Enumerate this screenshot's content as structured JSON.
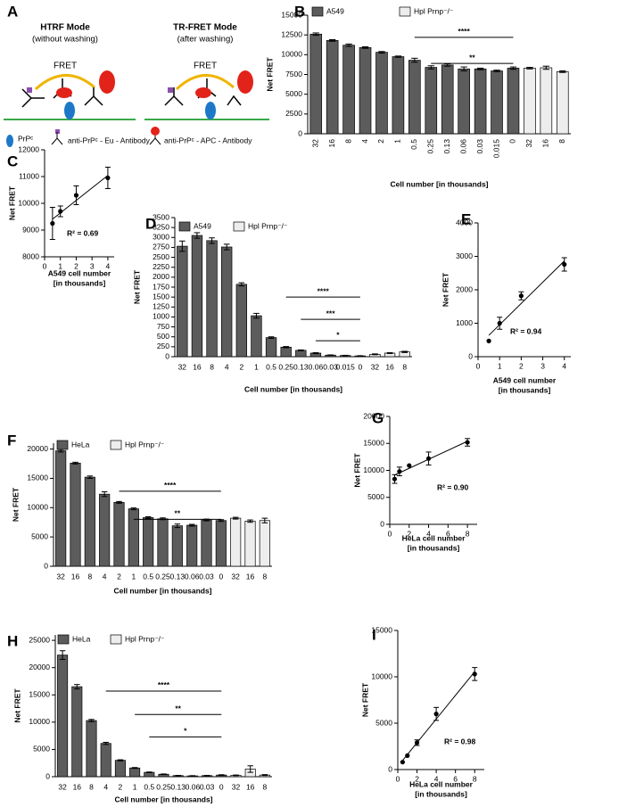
{
  "diagram": {
    "label": "A",
    "modes": [
      {
        "title": "HTRF Mode",
        "subtitle": "(without washing)",
        "signal": "FRET"
      },
      {
        "title": "TR-FRET Mode",
        "subtitle": "(after washing)",
        "signal": "FRET"
      }
    ],
    "legend": [
      "PrPᶜ",
      "anti-PrPᶜ - Eu - Antibody",
      "anti-PrPᶜ - APC - Antibody"
    ]
  },
  "chart_data": [
    {
      "type": "bar",
      "label": "B",
      "ylabel": "Net FRET",
      "xlabel": "Cell number [in thousands]",
      "categories": [
        "32",
        "16",
        "8",
        "4",
        "2",
        "1",
        "0.5",
        "0.25",
        "0.13",
        "0.06",
        "0.03",
        "0.015",
        "0",
        "32",
        "16",
        "8"
      ],
      "series": [
        {
          "name": "A549",
          "color": "#5c5c5c",
          "values": [
            12600,
            11800,
            11200,
            10900,
            10300,
            9750,
            9300,
            8400,
            8700,
            8200,
            8200,
            7950,
            8300,
            null,
            null,
            null
          ],
          "errors": [
            150,
            100,
            150,
            100,
            100,
            80,
            250,
            200,
            150,
            250,
            100,
            100,
            150,
            null,
            null,
            null
          ]
        },
        {
          "name": "Hpl Prnp⁻/⁻",
          "color": "#ededed",
          "values": [
            null,
            null,
            null,
            null,
            null,
            null,
            null,
            null,
            null,
            null,
            null,
            null,
            null,
            8300,
            8350,
            7850
          ],
          "errors": [
            null,
            null,
            null,
            null,
            null,
            null,
            null,
            null,
            null,
            null,
            null,
            null,
            null,
            100,
            200,
            100
          ]
        }
      ],
      "ylim": [
        0,
        15000
      ],
      "yticks": [
        0,
        2500,
        5000,
        7500,
        10000,
        12500,
        15000
      ],
      "annotations": [
        {
          "text": "****",
          "y": 12200,
          "from": 6,
          "to": 12
        },
        {
          "text": "**",
          "y": 8900,
          "from": 7,
          "to": 12
        }
      ]
    },
    {
      "type": "scatter",
      "label": "C",
      "ylabel": "Net FRET",
      "xlabel": [
        "A549 cell number",
        "[in thousands]"
      ],
      "x": [
        0.5,
        1,
        2,
        4
      ],
      "values": [
        9250,
        9700,
        10300,
        10950
      ],
      "errors": [
        600,
        200,
        350,
        400
      ],
      "color": "#000000",
      "xlim": [
        0,
        4.4
      ],
      "xticks": [
        0,
        1,
        2,
        3,
        4
      ],
      "ylim": [
        8000,
        12000
      ],
      "yticks": [
        8000,
        9000,
        10000,
        11000,
        12000
      ],
      "annotation": "R² = 0.69"
    },
    {
      "type": "bar",
      "label": "D",
      "ylabel": "Net FRET",
      "xlabel": "Cell number [in thousands]",
      "categories": [
        "32",
        "16",
        "8",
        "4",
        "2",
        "1",
        "0.5",
        "0.25",
        "0.13",
        "0.06",
        "0.03",
        "0.015",
        "0",
        "32",
        "16",
        "8"
      ],
      "series": [
        {
          "name": "A549",
          "color": "#5c5c5c",
          "values": [
            2780,
            3050,
            2920,
            2760,
            1820,
            1030,
            480,
            240,
            160,
            90,
            40,
            30,
            20,
            null,
            null,
            null
          ],
          "errors": [
            130,
            70,
            70,
            70,
            40,
            60,
            20,
            15,
            10,
            10,
            5,
            5,
            5,
            null,
            null,
            null
          ]
        },
        {
          "name": "Hpl Prnp⁻/⁻",
          "color": "#ededed",
          "values": [
            null,
            null,
            null,
            null,
            null,
            null,
            null,
            null,
            null,
            null,
            null,
            null,
            null,
            60,
            90,
            120
          ],
          "errors": [
            null,
            null,
            null,
            null,
            null,
            null,
            null,
            null,
            null,
            null,
            null,
            null,
            null,
            10,
            10,
            15
          ]
        }
      ],
      "ylim": [
        0,
        3500
      ],
      "yticks": [
        0,
        250,
        500,
        750,
        1000,
        1250,
        1500,
        1750,
        2000,
        2250,
        2500,
        2750,
        3000,
        3250,
        3500
      ],
      "annotations": [
        {
          "text": "****",
          "y": 1500,
          "from": 7,
          "to": 12
        },
        {
          "text": "***",
          "y": 940,
          "from": 8,
          "to": 12
        },
        {
          "text": "*",
          "y": 400,
          "from": 9,
          "to": 12
        }
      ]
    },
    {
      "type": "scatter",
      "label": "E",
      "ylabel": "Net FRET",
      "xlabel": [
        "A549 cell number",
        "[in thousands]"
      ],
      "x": [
        0.5,
        1,
        2,
        4
      ],
      "values": [
        470,
        1000,
        1820,
        2760
      ],
      "errors": [
        null,
        180,
        120,
        200
      ],
      "color": "#000000",
      "xlim": [
        0,
        4.3
      ],
      "xticks": [
        0,
        1,
        2,
        3,
        4
      ],
      "ylim": [
        0,
        4000
      ],
      "yticks": [
        0,
        1000,
        2000,
        3000,
        4000
      ],
      "annotation": "R² = 0.94"
    },
    {
      "type": "bar",
      "label": "F",
      "ylabel": "Net FRET",
      "xlabel": "Cell number [in thousands]",
      "categories": [
        "32",
        "16",
        "8",
        "4",
        "2",
        "1",
        "0.5",
        "0.25",
        "0.13",
        "0.06",
        "0.03",
        "0",
        "32",
        "16",
        "8"
      ],
      "series": [
        {
          "name": "HeLa",
          "color": "#5c5c5c",
          "values": [
            19700,
            17600,
            15200,
            12300,
            10900,
            9800,
            8300,
            8100,
            6900,
            7000,
            7900,
            7800,
            null,
            null,
            null
          ],
          "errors": [
            200,
            150,
            200,
            400,
            150,
            150,
            150,
            150,
            300,
            150,
            150,
            150,
            null,
            null,
            null
          ]
        },
        {
          "name": "Hpl Prnp⁻/⁻",
          "color": "#ededed",
          "values": [
            null,
            null,
            null,
            null,
            null,
            null,
            null,
            null,
            null,
            null,
            null,
            null,
            8200,
            7700,
            7800
          ],
          "errors": [
            null,
            null,
            null,
            null,
            null,
            null,
            null,
            null,
            null,
            null,
            null,
            null,
            150,
            200,
            400
          ]
        }
      ],
      "ylim": [
        0,
        21000
      ],
      "yticks": [
        0,
        5000,
        10000,
        15000,
        20000
      ],
      "annotations": [
        {
          "text": "****",
          "y": 12800,
          "from": 4,
          "to": 11
        },
        {
          "text": "**",
          "y": 8000,
          "from": 5,
          "to": 11
        }
      ]
    },
    {
      "type": "scatter",
      "label": "G",
      "ylabel": "Net FRET",
      "xlabel": [
        "HeLa cell number",
        "[in thousands]"
      ],
      "x": [
        0.5,
        1,
        2,
        4,
        8
      ],
      "values": [
        8400,
        9800,
        10900,
        12200,
        15200
      ],
      "errors": [
        800,
        800,
        null,
        1200,
        700
      ],
      "color": "#000000",
      "xlim": [
        0,
        9
      ],
      "xticks": [
        0,
        2,
        4,
        6,
        8
      ],
      "ylim": [
        0,
        20000
      ],
      "yticks": [
        0,
        5000,
        10000,
        15000,
        20000
      ],
      "annotation": "R² = 0.90"
    },
    {
      "type": "bar",
      "label": "H",
      "ylabel": "Net FRET",
      "xlabel": "Cell number [in thousands]",
      "categories": [
        "32",
        "16",
        "8",
        "4",
        "2",
        "1",
        "0.5",
        "0.25",
        "0.13",
        "0.06",
        "0.03",
        "0",
        "32",
        "16",
        "8"
      ],
      "series": [
        {
          "name": "HeLa",
          "color": "#5c5c5c",
          "values": [
            22300,
            16500,
            10300,
            6100,
            3000,
            1600,
            800,
            450,
            200,
            150,
            200,
            300,
            null,
            null,
            null
          ],
          "errors": [
            800,
            400,
            200,
            200,
            100,
            80,
            60,
            50,
            40,
            40,
            40,
            60,
            null,
            null,
            null
          ]
        },
        {
          "name": "Hpl Prnp⁻/⁻",
          "color": "#ededed",
          "values": [
            null,
            null,
            null,
            null,
            null,
            null,
            null,
            null,
            null,
            null,
            null,
            null,
            250,
            1400,
            300
          ],
          "errors": [
            null,
            null,
            null,
            null,
            null,
            null,
            null,
            null,
            null,
            null,
            null,
            null,
            60,
            600,
            80
          ]
        }
      ],
      "ylim": [
        0,
        26000
      ],
      "yticks": [
        0,
        5000,
        10000,
        15000,
        20000,
        25000
      ],
      "annotations": [
        {
          "text": "****",
          "y": 15700,
          "from": 3,
          "to": 11
        },
        {
          "text": "**",
          "y": 11400,
          "from": 5,
          "to": 11
        },
        {
          "text": "*",
          "y": 7300,
          "from": 6,
          "to": 11
        }
      ]
    },
    {
      "type": "scatter",
      "label": "I",
      "ylabel": "Net FRET",
      "xlabel": [
        "HeLa cell number",
        "[in thousands]"
      ],
      "x": [
        0.5,
        1,
        2,
        4,
        8
      ],
      "values": [
        800,
        1500,
        2900,
        6000,
        10300
      ],
      "errors": [
        null,
        null,
        300,
        700,
        700
      ],
      "color": "#000000",
      "xlim": [
        0,
        9
      ],
      "xticks": [
        0,
        2,
        4,
        6,
        8
      ],
      "ylim": [
        0,
        15000
      ],
      "yticks": [
        0,
        5000,
        10000,
        15000
      ],
      "annotation": "R² = 0.98"
    }
  ]
}
